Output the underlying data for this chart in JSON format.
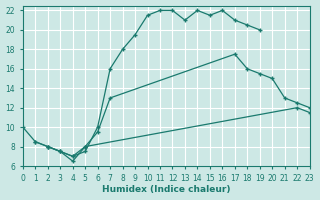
{
  "xlabel": "Humidex (Indice chaleur)",
  "background_color": "#cde8e5",
  "grid_color": "#ffffff",
  "line_color": "#1a7a6e",
  "xlim": [
    0,
    23
  ],
  "ylim": [
    6,
    22.5
  ],
  "xticks": [
    0,
    1,
    2,
    3,
    4,
    5,
    6,
    7,
    8,
    9,
    10,
    11,
    12,
    13,
    14,
    15,
    16,
    17,
    18,
    19,
    20,
    21,
    22,
    23
  ],
  "yticks": [
    6,
    8,
    10,
    12,
    14,
    16,
    18,
    20,
    22
  ],
  "series1_x": [
    0,
    1,
    2,
    3,
    4,
    5,
    6,
    7,
    8,
    9,
    10,
    11,
    12,
    13,
    14,
    15,
    16,
    17,
    18,
    19
  ],
  "series1_y": [
    10,
    8.5,
    8,
    7.5,
    7,
    7.5,
    10,
    16,
    18,
    19.5,
    21.5,
    22,
    22,
    21,
    22,
    21.5,
    22,
    21,
    20.5,
    20
  ],
  "series2_x": [
    2,
    3,
    4,
    5,
    6,
    7,
    17,
    18,
    19,
    20,
    21,
    22,
    23
  ],
  "series2_y": [
    8,
    7.5,
    6.5,
    8,
    9.5,
    13,
    17.5,
    16,
    15.5,
    15,
    13,
    12.5,
    12
  ],
  "series3_x": [
    1,
    2,
    3,
    4,
    5,
    22,
    23
  ],
  "series3_y": [
    8.5,
    8,
    7.5,
    7,
    8,
    12,
    11.5
  ]
}
